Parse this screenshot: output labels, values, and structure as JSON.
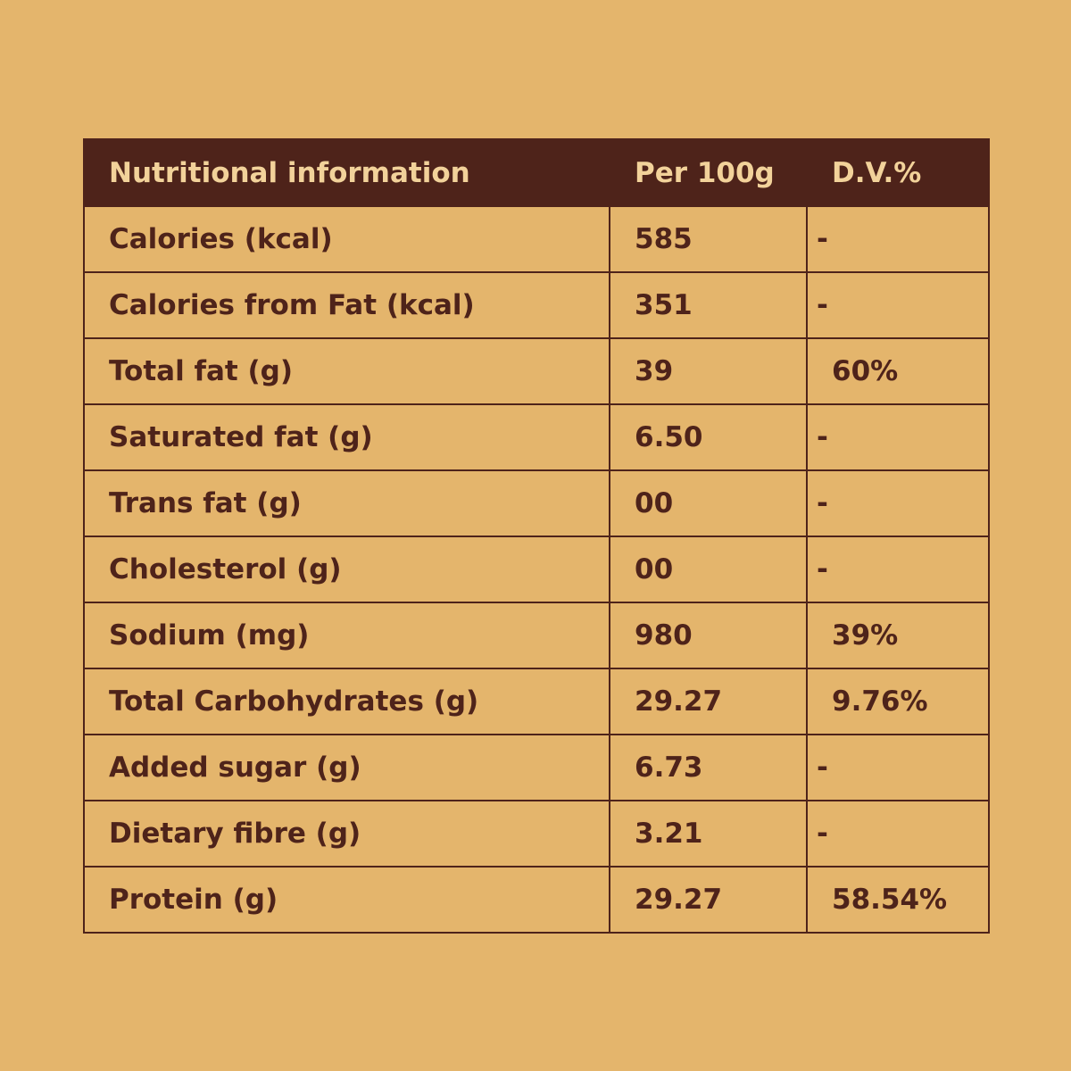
{
  "table": {
    "headers": {
      "nutrient": "Nutritional information",
      "per100g": "Per 100g",
      "dv": "D.V.%"
    },
    "rows": [
      {
        "nutrient": "Calories (kcal)",
        "per100g": "585",
        "dv": "-"
      },
      {
        "nutrient": "Calories from Fat (kcal)",
        "per100g": "351",
        "dv": "-"
      },
      {
        "nutrient": "Total fat (g)",
        "per100g": "39",
        "dv": "60%"
      },
      {
        "nutrient": "Saturated fat (g)",
        "per100g": "6.50",
        "dv": "-"
      },
      {
        "nutrient": "Trans fat (g)",
        "per100g": "00",
        "dv": "-"
      },
      {
        "nutrient": "Cholesterol (g)",
        "per100g": "00",
        "dv": "-"
      },
      {
        "nutrient": "Sodium (mg)",
        "per100g": "980",
        "dv": "39%"
      },
      {
        "nutrient": "Total Carbohydrates (g)",
        "per100g": "29.27",
        "dv": "9.76%"
      },
      {
        "nutrient": "Added sugar (g)",
        "per100g": "6.73",
        "dv": "-"
      },
      {
        "nutrient": "Dietary fibre (g)",
        "per100g": "3.21",
        "dv": "-"
      },
      {
        "nutrient": "Protein (g)",
        "per100g": "29.27",
        "dv": "58.54%"
      }
    ]
  },
  "colors": {
    "background": "#e4b56c",
    "header_background": "#4e231a",
    "header_text": "#f2d29a",
    "body_text": "#4e231a",
    "border": "#4e231a"
  }
}
